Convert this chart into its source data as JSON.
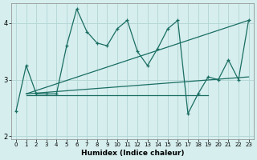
{
  "title": "",
  "xlabel": "Humidex (Indice chaleur)",
  "bg_color": "#d6eeee",
  "grid_color": "#b8d8d8",
  "line_color": "#1a6e62",
  "xlim": [
    -0.5,
    23.5
  ],
  "ylim": [
    1.95,
    4.35
  ],
  "yticks": [
    2,
    3,
    4
  ],
  "xticks": [
    0,
    1,
    2,
    3,
    4,
    5,
    6,
    7,
    8,
    9,
    10,
    11,
    12,
    13,
    14,
    15,
    16,
    17,
    18,
    19,
    20,
    21,
    22,
    23
  ],
  "series1_x": [
    0,
    1,
    2,
    3,
    4,
    5,
    6,
    7,
    8,
    9,
    10,
    11,
    12,
    13,
    14,
    15,
    16,
    17,
    18,
    19,
    20,
    21,
    22,
    23
  ],
  "series1_y": [
    2.45,
    3.25,
    2.75,
    2.75,
    2.75,
    3.6,
    4.25,
    3.85,
    3.65,
    3.6,
    3.9,
    4.05,
    3.5,
    3.25,
    3.55,
    3.9,
    4.05,
    2.4,
    2.75,
    3.05,
    3.0,
    3.35,
    3.0,
    4.05
  ],
  "series2_x": [
    1,
    23
  ],
  "series2_y": [
    2.75,
    3.05
  ],
  "series3_x": [
    1,
    23
  ],
  "series3_y": [
    2.75,
    4.05
  ],
  "series4_x": [
    1,
    19
  ],
  "series4_y": [
    2.72,
    2.72
  ]
}
